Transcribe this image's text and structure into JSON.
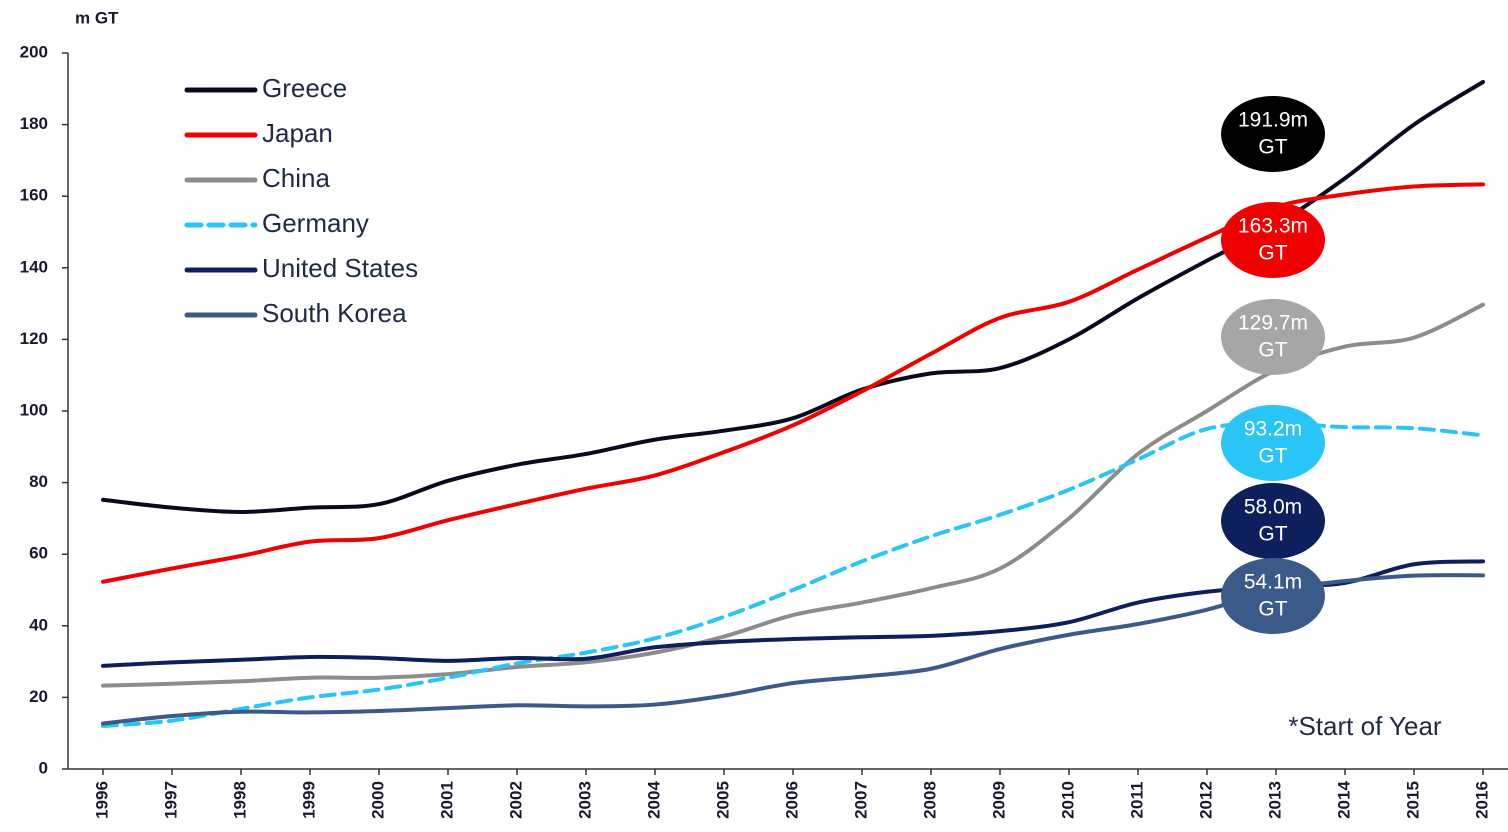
{
  "chart_data": {
    "type": "line",
    "y_label": "m GT",
    "note": "*Start of Year",
    "x": [
      1996,
      1997,
      1998,
      1999,
      2000,
      2001,
      2002,
      2003,
      2004,
      2005,
      2006,
      2007,
      2008,
      2009,
      2010,
      2011,
      2012,
      2013,
      2014,
      2015,
      2016
    ],
    "xlim": [
      1996,
      2016
    ],
    "ylim": [
      0,
      200
    ],
    "yticks": [
      0,
      20,
      40,
      60,
      80,
      100,
      120,
      140,
      160,
      180,
      200
    ],
    "series": [
      {
        "name": "Greece",
        "color": "#0a0a1e",
        "dash": false,
        "values": [
          75.2,
          73,
          71.8,
          73,
          74,
          80.5,
          85,
          88,
          92,
          94.5,
          98,
          106,
          110.5,
          112,
          120,
          131.5,
          142,
          152,
          165,
          180,
          191.9
        ]
      },
      {
        "name": "Japan",
        "color": "#f00000",
        "dash": false,
        "values": [
          52.3,
          56,
          59.5,
          63.5,
          64.5,
          69.5,
          74,
          78.3,
          82,
          88.5,
          96,
          105.5,
          116,
          126,
          130.5,
          139.5,
          148.5,
          157,
          160.5,
          162.7,
          163.3
        ]
      },
      {
        "name": "China",
        "color": "#8c8c8c",
        "dash": false,
        "values": [
          23.3,
          23.8,
          24.5,
          25.5,
          25.5,
          26.5,
          28.5,
          29.8,
          32.5,
          37,
          43,
          46.5,
          50.5,
          56,
          70,
          88,
          100,
          111.5,
          118,
          120.5,
          129.7
        ]
      },
      {
        "name": "Germany",
        "color": "#29c5f6",
        "dash": true,
        "values": [
          12,
          13.5,
          16.8,
          20,
          22.2,
          25.5,
          29.5,
          32.5,
          36.5,
          42.5,
          50,
          58,
          65,
          71,
          78,
          86.5,
          95,
          96.5,
          95.5,
          95.2,
          93.2
        ]
      },
      {
        "name": "United States",
        "color": "#0d1f5c",
        "dash": false,
        "values": [
          28.8,
          29.8,
          30.5,
          31.3,
          31,
          30.2,
          31,
          30.8,
          34,
          35.5,
          36.3,
          36.8,
          37.2,
          38.5,
          41,
          46.5,
          49.5,
          51,
          52,
          57.2,
          58
        ]
      },
      {
        "name": "South Korea",
        "color": "#3b5a8a",
        "dash": false,
        "values": [
          12.7,
          14.8,
          16,
          15.8,
          16.2,
          17,
          17.8,
          17.5,
          18,
          20.5,
          24,
          25.8,
          28,
          33.5,
          37.5,
          40.5,
          44.5,
          50,
          52.5,
          54,
          54.1
        ]
      }
    ],
    "annotations": [
      {
        "lines": [
          "191.9m",
          "GT"
        ],
        "color": "#000000"
      },
      {
        "lines": [
          "163.3m",
          "GT"
        ],
        "color": "#f00000"
      },
      {
        "lines": [
          "129.7m",
          "GT"
        ],
        "color": "#a6a6a6"
      },
      {
        "lines": [
          "93.2m",
          "GT"
        ],
        "color": "#29c5f6"
      },
      {
        "lines": [
          "58.0m",
          "GT"
        ],
        "color": "#0d1f5c"
      },
      {
        "lines": [
          "54.1m",
          "GT"
        ],
        "color": "#3b5a8a"
      }
    ]
  }
}
